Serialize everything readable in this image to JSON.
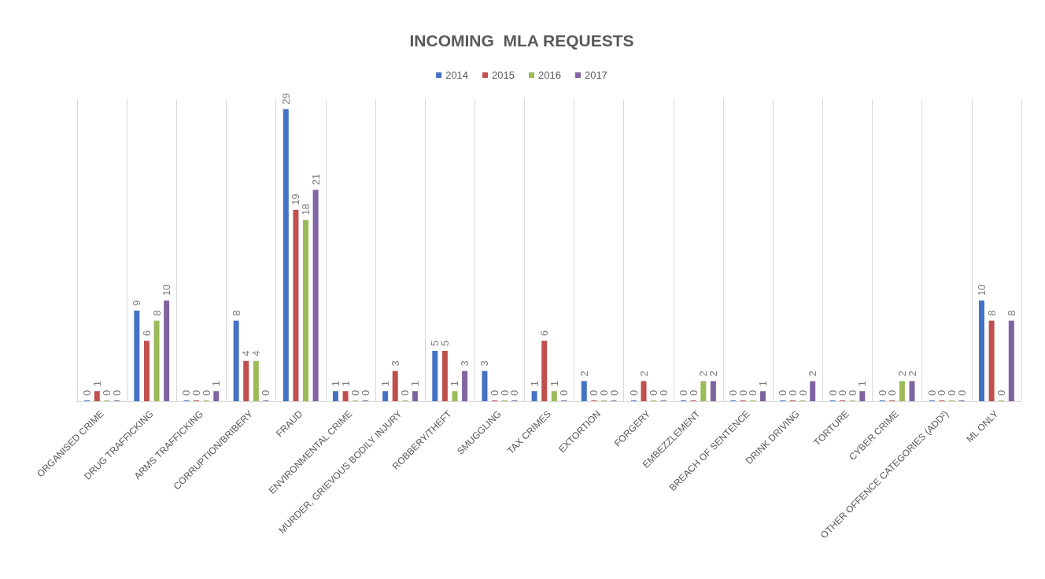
{
  "chart_data": {
    "type": "bar",
    "title": "INCOMING  MLA REQUESTS",
    "categories": [
      "ORGANISED CRIME",
      "DRUG TRAFFICKING",
      "ARMS TRAFFICKING",
      "CORRUPTION/BRIBERY",
      "FRAUD",
      "ENVIRONMENTAL CRIME",
      "MURDER, GRIEVOUS BODILY INJURY",
      "ROBBERY/THEFT",
      "SMUGGLING",
      "TAX CRIMES",
      "EXTORTION",
      "FORGERY",
      "EMBEZZLEMENT",
      "BREACH OF SENTENCE",
      "DRINK DRIVING",
      "TORTURE",
      "CYBER CRIME",
      "OTHER OFFENCE CATEGORIES (ADD²)",
      "ML ONLY"
    ],
    "series": [
      {
        "name": "2014",
        "color": "#4472c4",
        "values": [
          0,
          9,
          0,
          8,
          29,
          1,
          1,
          5,
          3,
          1,
          2,
          0,
          0,
          0,
          0,
          0,
          0,
          0,
          10
        ]
      },
      {
        "name": "2015",
        "color": "#c0504d",
        "values": [
          1,
          6,
          0,
          4,
          19,
          1,
          3,
          5,
          0,
          6,
          0,
          2,
          0,
          0,
          0,
          0,
          0,
          0,
          8
        ]
      },
      {
        "name": "2016",
        "color": "#9bbb59",
        "values": [
          0,
          8,
          0,
          4,
          18,
          0,
          0,
          1,
          0,
          1,
          0,
          0,
          2,
          0,
          0,
          0,
          2,
          0,
          0
        ]
      },
      {
        "name": "2017",
        "color": "#8064a2",
        "values": [
          0,
          10,
          1,
          0,
          21,
          0,
          1,
          3,
          0,
          0,
          0,
          0,
          2,
          1,
          2,
          1,
          2,
          0,
          8
        ]
      }
    ],
    "data_labels": true,
    "grid": "x",
    "legend": "top"
  }
}
